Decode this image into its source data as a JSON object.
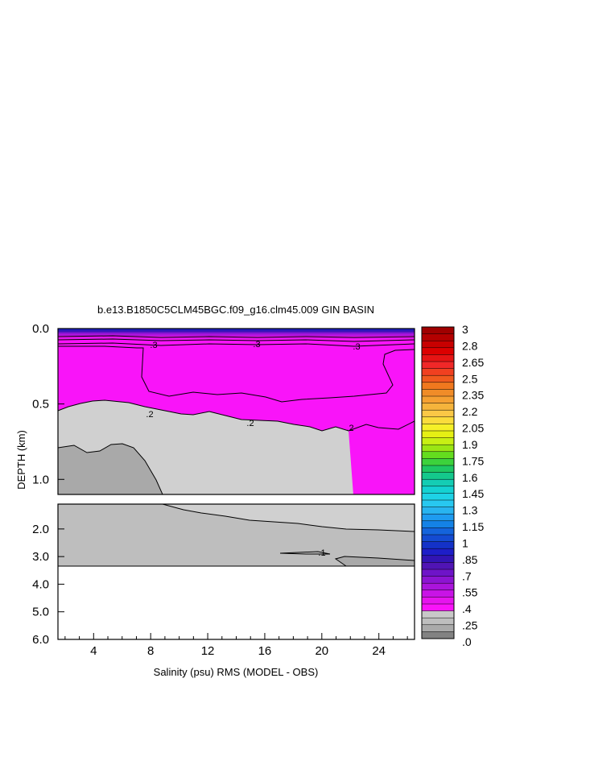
{
  "chart_data": {
    "type": "heatmap",
    "title": "b.e13.B1850C5CLM45BGC.f09_g16.clm45.009 GIN BASIN",
    "xlabel": "Salinity (psu) RMS (MODEL - OBS)",
    "ylabel": "DEPTH (km)",
    "xlim": [
      1.5,
      26.5
    ],
    "x_ticks": [
      "4",
      "8",
      "12",
      "16",
      "20",
      "24"
    ],
    "x_tick_values": [
      4,
      8,
      12,
      16,
      20,
      24
    ],
    "upper_panel": {
      "ylim": [
        0.0,
        1.1
      ],
      "y_ticks": [
        "0.0",
        "0.5",
        "1.0"
      ],
      "y_tick_values": [
        0.0,
        0.5,
        1.0
      ]
    },
    "lower_panel": {
      "ylim": [
        1.1,
        6.0
      ],
      "y_ticks": [
        "2.0",
        "3.0",
        "4.0",
        "5.0",
        "6.0"
      ],
      "y_tick_values": [
        2.0,
        3.0,
        4.0,
        5.0,
        6.0
      ]
    },
    "contour_labels": [
      ".3",
      ".3",
      ".3",
      ".2",
      ".2",
      ".2",
      ".1"
    ],
    "colorbar": {
      "labels": [
        "3",
        "2.8",
        "2.65",
        "2.5",
        "2.35",
        "2.2",
        "2.05",
        "1.9",
        "1.75",
        "1.6",
        "1.45",
        "1.3",
        "1.15",
        "1",
        ".85",
        ".7",
        ".55",
        ".4",
        ".25",
        ".0"
      ],
      "colors": [
        "#a00000",
        "#b40000",
        "#c80000",
        "#dc0000",
        "#e61414",
        "#f02828",
        "#f04020",
        "#f05a1e",
        "#f0781e",
        "#f08c28",
        "#f5a032",
        "#f5b43c",
        "#fac846",
        "#fadc3c",
        "#f5f028",
        "#e6f014",
        "#c8f014",
        "#9be614",
        "#64dc1e",
        "#3cd23c",
        "#1ec864",
        "#14c88c",
        "#14cdb4",
        "#14d2d2",
        "#1ed2e6",
        "#28c8f0",
        "#28b4f0",
        "#1e9bf0",
        "#1482e6",
        "#1464dc",
        "#144bd2",
        "#1432c8",
        "#1e1ec8",
        "#3214b4",
        "#5014b4",
        "#6e14c8",
        "#8c14d2",
        "#aa14dc",
        "#c814e6",
        "#e614ee",
        "#f914f9",
        "#c8c8c8",
        "#bebebe",
        "#aaaaaa",
        "#828282"
      ]
    }
  }
}
